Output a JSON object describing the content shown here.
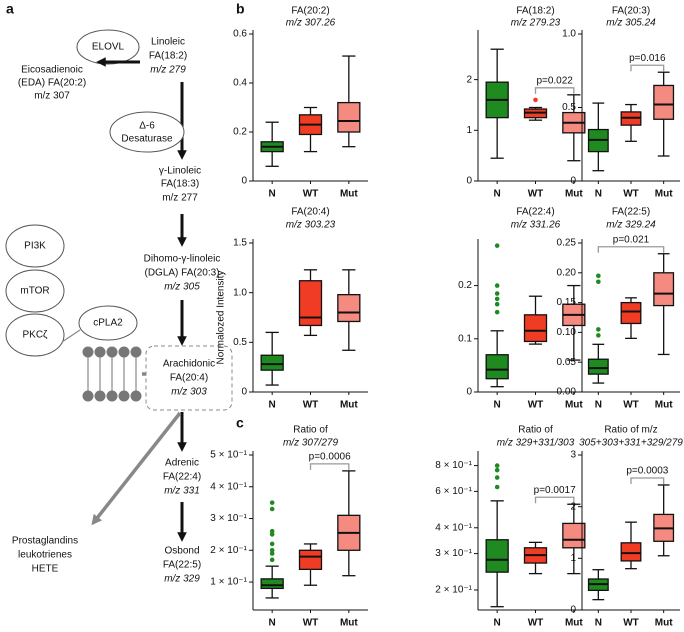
{
  "panel_labels": [
    "a",
    "b",
    "c"
  ],
  "diagram": {
    "nodes": [
      {
        "lines": [
          "ELOVL"
        ]
      },
      {
        "lines": [
          "Linoleic",
          "FA(18:2)",
          "m/z 279"
        ]
      },
      {
        "lines": [
          "Eicosadienoic",
          "(EDA) FA(20:2)",
          "m/z 307"
        ]
      },
      {
        "lines": [
          "Δ-6",
          "Desaturase"
        ]
      },
      {
        "lines": [
          "γ-Linoleic",
          "FA(18:3)",
          "m/z 277"
        ]
      },
      {
        "lines": [
          "PI3K"
        ]
      },
      {
        "lines": [
          "mTOR"
        ]
      },
      {
        "lines": [
          "PKCζ"
        ]
      },
      {
        "lines": [
          "cPLA2"
        ]
      },
      {
        "lines": [
          "Dihomo-γ-linoleic",
          "(DGLA) FA(20:3)",
          "m/z 305"
        ]
      },
      {
        "lines": [
          "Arachidonic",
          "FA(20:4)",
          "m/z 303"
        ]
      },
      {
        "lines": [
          "Adrenic",
          "FA(22:4)",
          "m/z 331"
        ]
      },
      {
        "lines": [
          "Prostaglandins",
          "leukotrienes",
          "HETE"
        ]
      },
      {
        "lines": [
          "Osbond",
          "FA(22:5)",
          "m/z 329"
        ]
      }
    ]
  },
  "chart_data": [
    {
      "type": "box",
      "title": "FA(20:2)",
      "subtitle": "m/z 307.26",
      "categories": [
        "N",
        "WT",
        "Mut"
      ],
      "colors": [
        "#1f8a1f",
        "#f03c24",
        "#f58a80"
      ],
      "boxes": [
        {
          "min": 0.06,
          "q1": 0.12,
          "median": 0.14,
          "q3": 0.16,
          "max": 0.24,
          "outliers": []
        },
        {
          "min": 0.12,
          "q1": 0.19,
          "median": 0.23,
          "q3": 0.27,
          "max": 0.3,
          "outliers": []
        },
        {
          "min": 0.14,
          "q1": 0.2,
          "median": 0.245,
          "q3": 0.32,
          "max": 0.51,
          "outliers": []
        }
      ],
      "ylim": [
        0,
        0.6
      ],
      "yticks": [
        0,
        0.2,
        0.4,
        0.6
      ],
      "annotations": []
    },
    {
      "type": "box",
      "title": "FA(18:2)",
      "subtitle": "m/z 279.23",
      "categories": [
        "N",
        "WT",
        "Mut"
      ],
      "colors": [
        "#1f8a1f",
        "#f03c24",
        "#f58a80"
      ],
      "boxes": [
        {
          "min": 0.45,
          "q1": 1.25,
          "median": 1.6,
          "q3": 1.95,
          "max": 2.6,
          "outliers": []
        },
        {
          "min": 1.2,
          "q1": 1.25,
          "median": 1.35,
          "q3": 1.42,
          "max": 1.45,
          "outliers": [
            1.6
          ]
        },
        {
          "min": 0.4,
          "q1": 0.95,
          "median": 1.15,
          "q3": 1.35,
          "max": 1.7,
          "outliers": []
        }
      ],
      "ylim": [
        0,
        2.9
      ],
      "yticks": [
        0,
        1,
        2
      ],
      "annotations": [
        {
          "text": "p=0.022",
          "from": 1,
          "to": 2
        }
      ]
    },
    {
      "type": "box",
      "title": "FA(20:3)",
      "subtitle": "m/z 305.24",
      "categories": [
        "N",
        "WT",
        "Mut"
      ],
      "colors": [
        "#1f8a1f",
        "#f03c24",
        "#f58a80"
      ],
      "boxes": [
        {
          "min": 0.07,
          "q1": 0.2,
          "median": 0.28,
          "q3": 0.35,
          "max": 0.53,
          "outliers": []
        },
        {
          "min": 0.27,
          "q1": 0.38,
          "median": 0.43,
          "q3": 0.47,
          "max": 0.52,
          "outliers": []
        },
        {
          "min": 0.17,
          "q1": 0.42,
          "median": 0.52,
          "q3": 0.65,
          "max": 0.74,
          "outliers": []
        }
      ],
      "ylim": [
        0,
        1
      ],
      "yticks": [
        0,
        0.5,
        {
          "value": 1,
          "label": "1.0"
        }
      ],
      "annotations": [
        {
          "text": "p=0.016",
          "from": 1,
          "to": 2
        }
      ]
    },
    {
      "type": "box",
      "title": "FA(20:4)",
      "subtitle": "m/z 303.23",
      "ylabel": "Normalozed Intensity",
      "categories": [
        "N",
        "WT",
        "Mut"
      ],
      "colors": [
        "#1f8a1f",
        "#f03c24",
        "#f58a80"
      ],
      "boxes": [
        {
          "min": 0.07,
          "q1": 0.22,
          "median": 0.28,
          "q3": 0.37,
          "max": 0.6,
          "outliers": []
        },
        {
          "min": 0.57,
          "q1": 0.67,
          "median": 0.75,
          "q3": 1.12,
          "max": 1.23,
          "outliers": []
        },
        {
          "min": 0.42,
          "q1": 0.71,
          "median": 0.8,
          "q3": 0.98,
          "max": 1.23,
          "outliers": []
        }
      ],
      "ylim": [
        0,
        1.5
      ],
      "yticks": [
        0,
        0.5,
        {
          "value": 1,
          "label": "1.0"
        },
        1.5
      ],
      "annotations": []
    },
    {
      "type": "box",
      "title": "FA(22:4)",
      "subtitle": "m/z 331.26",
      "categories": [
        "N",
        "WT",
        "Mut"
      ],
      "colors": [
        "#1f8a1f",
        "#f03c24",
        "#f58a80"
      ],
      "boxes": [
        {
          "min": 0.01,
          "q1": 0.025,
          "median": 0.042,
          "q3": 0.07,
          "max": 0.115,
          "outliers": [
            0.275,
            0.2,
            0.185,
            0.175,
            0.165,
            0.15
          ]
        },
        {
          "min": 0.09,
          "q1": 0.095,
          "median": 0.115,
          "q3": 0.145,
          "max": 0.18,
          "outliers": []
        },
        {
          "min": 0.06,
          "q1": 0.125,
          "median": 0.145,
          "q3": 0.165,
          "max": 0.2,
          "outliers": []
        }
      ],
      "ylim": [
        0,
        0.28
      ],
      "yticks": [
        0,
        0.1,
        0.2
      ],
      "annotations": []
    },
    {
      "type": "box",
      "title": "FA(22:5)",
      "subtitle": "m/z 329.24",
      "categories": [
        "N",
        "WT",
        "Mut"
      ],
      "colors": [
        "#1f8a1f",
        "#f03c24",
        "#f58a80"
      ],
      "boxes": [
        {
          "min": 0.015,
          "q1": 0.03,
          "median": 0.04,
          "q3": 0.055,
          "max": 0.08,
          "outliers": [
            0.195,
            0.185,
            0.105,
            0.095
          ]
        },
        {
          "min": 0.09,
          "q1": 0.115,
          "median": 0.135,
          "q3": 0.15,
          "max": 0.158,
          "outliers": []
        },
        {
          "min": 0.063,
          "q1": 0.145,
          "median": 0.165,
          "q3": 0.2,
          "max": 0.232,
          "outliers": []
        }
      ],
      "ylim": [
        0,
        0.25
      ],
      "yticks": [
        {
          "value": 0,
          "label": "0.00"
        },
        0.05,
        {
          "value": 0.1,
          "label": "0.10"
        },
        0.15,
        {
          "value": 0.2,
          "label": "0.20"
        },
        0.25
      ],
      "annotations": [
        {
          "text": "p=0.021",
          "from": 0,
          "to": 2
        }
      ]
    },
    {
      "type": "box",
      "title": "Ratio of",
      "subtitle": "m/z 307/279",
      "categories": [
        "N",
        "WT",
        "Mut"
      ],
      "colors": [
        "#1f8a1f",
        "#f03c24",
        "#f58a80"
      ],
      "boxes": [
        {
          "min": 0.05,
          "q1": 0.08,
          "median": 0.09,
          "q3": 0.11,
          "max": 0.15,
          "outliers": [
            0.35,
            0.33,
            0.26,
            0.25,
            0.22,
            0.2,
            0.19,
            0.17
          ]
        },
        {
          "min": 0.09,
          "q1": 0.14,
          "median": 0.18,
          "q3": 0.2,
          "max": 0.22,
          "outliers": []
        },
        {
          "min": 0.12,
          "q1": 0.2,
          "median": 0.255,
          "q3": 0.31,
          "max": 0.45,
          "outliers": []
        }
      ],
      "ylim": [
        0.012,
        0.5
      ],
      "yticks": [
        {
          "value": 0.1,
          "label": "1 × 10⁻¹"
        },
        {
          "value": 0.2,
          "label": "2 × 10⁻¹"
        },
        {
          "value": 0.3,
          "label": "3 × 10⁻¹"
        },
        {
          "value": 0.4,
          "label": "4 × 10⁻¹"
        },
        {
          "value": 0.5,
          "label": "5 × 10⁻¹"
        }
      ],
      "annotations": [
        {
          "text": "p=0.0006",
          "from": 1,
          "to": 2
        }
      ]
    },
    {
      "type": "box",
      "title": "Ratio of",
      "subtitle": "m/z 329+331/303",
      "log": true,
      "categories": [
        "N",
        "WT",
        "Mut"
      ],
      "colors": [
        "#1f8a1f",
        "#f03c24",
        "#f58a80"
      ],
      "boxes": [
        {
          "min": 0.166,
          "q1": 0.244,
          "median": 0.28,
          "q3": 0.35,
          "max": 0.54,
          "outliers": [
            0.8,
            0.76,
            0.7,
            0.63
          ]
        },
        {
          "min": 0.24,
          "q1": 0.27,
          "median": 0.295,
          "q3": 0.32,
          "max": 0.34,
          "outliers": []
        },
        {
          "min": 0.24,
          "q1": 0.32,
          "median": 0.35,
          "q3": 0.42,
          "max": 0.52,
          "outliers": []
        }
      ],
      "ylim": [
        0.16,
        0.9
      ],
      "yticks": [
        {
          "value": 0.2,
          "label": "2 × 10⁻¹"
        },
        {
          "value": 0.3,
          "label": "3 × 10⁻¹"
        },
        {
          "value": 0.4,
          "label": "4 × 10⁻¹"
        },
        {
          "value": 0.6,
          "label": "6 × 10⁻¹"
        },
        {
          "value": 0.8,
          "label": "8 × 10⁻¹"
        }
      ],
      "annotations": [
        {
          "text": "p=0.0017",
          "from": 1,
          "to": 2
        }
      ]
    },
    {
      "type": "box",
      "title": "Ratio of m/z",
      "subtitle": "305+303+331+329/279",
      "categories": [
        "N",
        "WT",
        "Mut"
      ],
      "colors": [
        "#1f8a1f",
        "#f03c24",
        "#f58a80"
      ],
      "boxes": [
        {
          "min": 0.2,
          "q1": 0.38,
          "median": 0.5,
          "q3": 0.6,
          "max": 0.78,
          "outliers": []
        },
        {
          "min": 0.8,
          "q1": 0.95,
          "median": 1.1,
          "q3": 1.3,
          "max": 1.7,
          "outliers": []
        },
        {
          "min": 1.05,
          "q1": 1.33,
          "median": 1.58,
          "q3": 1.85,
          "max": 2.42,
          "outliers": []
        }
      ],
      "ylim": [
        0,
        3
      ],
      "yticks": [
        0,
        1,
        2,
        3
      ],
      "annotations": [
        {
          "text": "p=0.0003",
          "from": 1,
          "to": 2
        }
      ]
    }
  ]
}
